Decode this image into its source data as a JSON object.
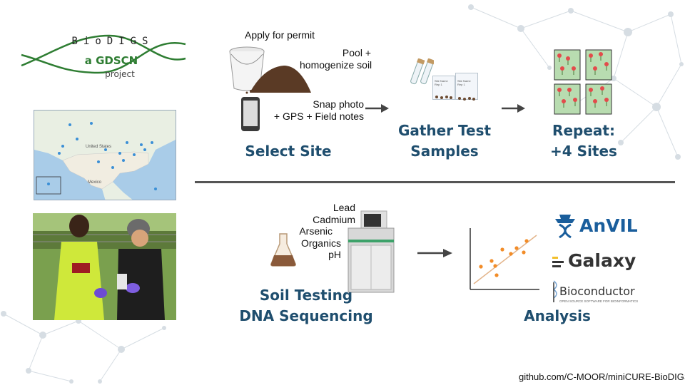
{
  "logo": {
    "project_name": "BioDIGS",
    "partner": "a GDSCN",
    "suffix": "project"
  },
  "top_row": {
    "notes": {
      "permit": "Apply for permit",
      "pool": [
        "Pool +",
        "homogenize soil"
      ],
      "photo": [
        "Snap photo",
        "+ GPS + Field notes"
      ]
    },
    "steps": {
      "select_site": "Select Site",
      "gather": [
        "Gather Test",
        "Samples"
      ],
      "repeat": [
        "Repeat:",
        "+4 Sites"
      ]
    },
    "bag_label": "Site Name Rep 1"
  },
  "bottom_row": {
    "tests": [
      "Lead",
      "Cadmium",
      "Arsenic",
      "Organics",
      "pH"
    ],
    "step": [
      "Soil Testing",
      "DNA Sequencing"
    ],
    "analysis": "Analysis",
    "tools": {
      "anvil": "AnVIL",
      "galaxy": "Galaxy",
      "bioconductor": "Bioconductor",
      "bioconductor_tagline": "OPEN SOURCE SOFTWARE FOR BIOINFORMATICS"
    }
  },
  "map": {
    "labels": {
      "us": "United States",
      "mexico": "Mexico"
    }
  },
  "footer": {
    "link": "github.com/C-MOOR/miniCURE-BioDIGS"
  },
  "colors": {
    "heading": "#1f4e6e",
    "logo_green": "#2e7d32",
    "scatter_points": "#f28c28",
    "anvil_blue": "#1a5e9c"
  }
}
